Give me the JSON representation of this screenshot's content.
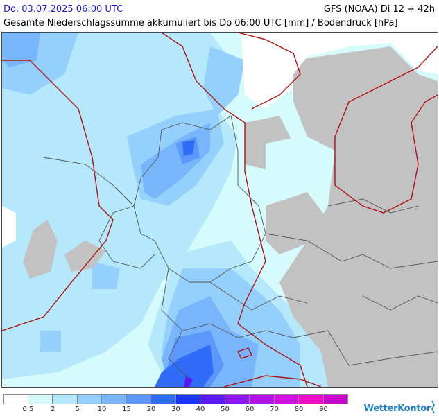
{
  "header": {
    "date": "Do, 03.07.2025 06:00 UTC",
    "model": "GFS (NOAA) Di 12 + 42h",
    "subtitle": "Gesamte Niederschlagssumme akkumuliert bis Do 06:00 UTC [mm] / Bodendruck [hPa]"
  },
  "legend": {
    "ticks": [
      "0.5",
      "2",
      "5",
      "10",
      "15",
      "20",
      "30",
      "40",
      "50",
      "60",
      "70",
      "80",
      "90"
    ],
    "colors": [
      "#ffffff",
      "#d6fbfd",
      "#b5e8fb",
      "#94d0fb",
      "#79b5fb",
      "#5c97fb",
      "#2f6cf7",
      "#1a35f5",
      "#5a18f7",
      "#8c16f5",
      "#b214ee",
      "#d40fe6",
      "#f10dc4",
      "#cc06cc"
    ]
  },
  "brand": {
    "name": "WetterKontor",
    "icon": "pressure-mark"
  },
  "map": {
    "region": "Mitteleuropa",
    "colors": {
      "land_no_data": "#c2c2c2",
      "isobar": "#b21010",
      "border": "#555555"
    }
  }
}
